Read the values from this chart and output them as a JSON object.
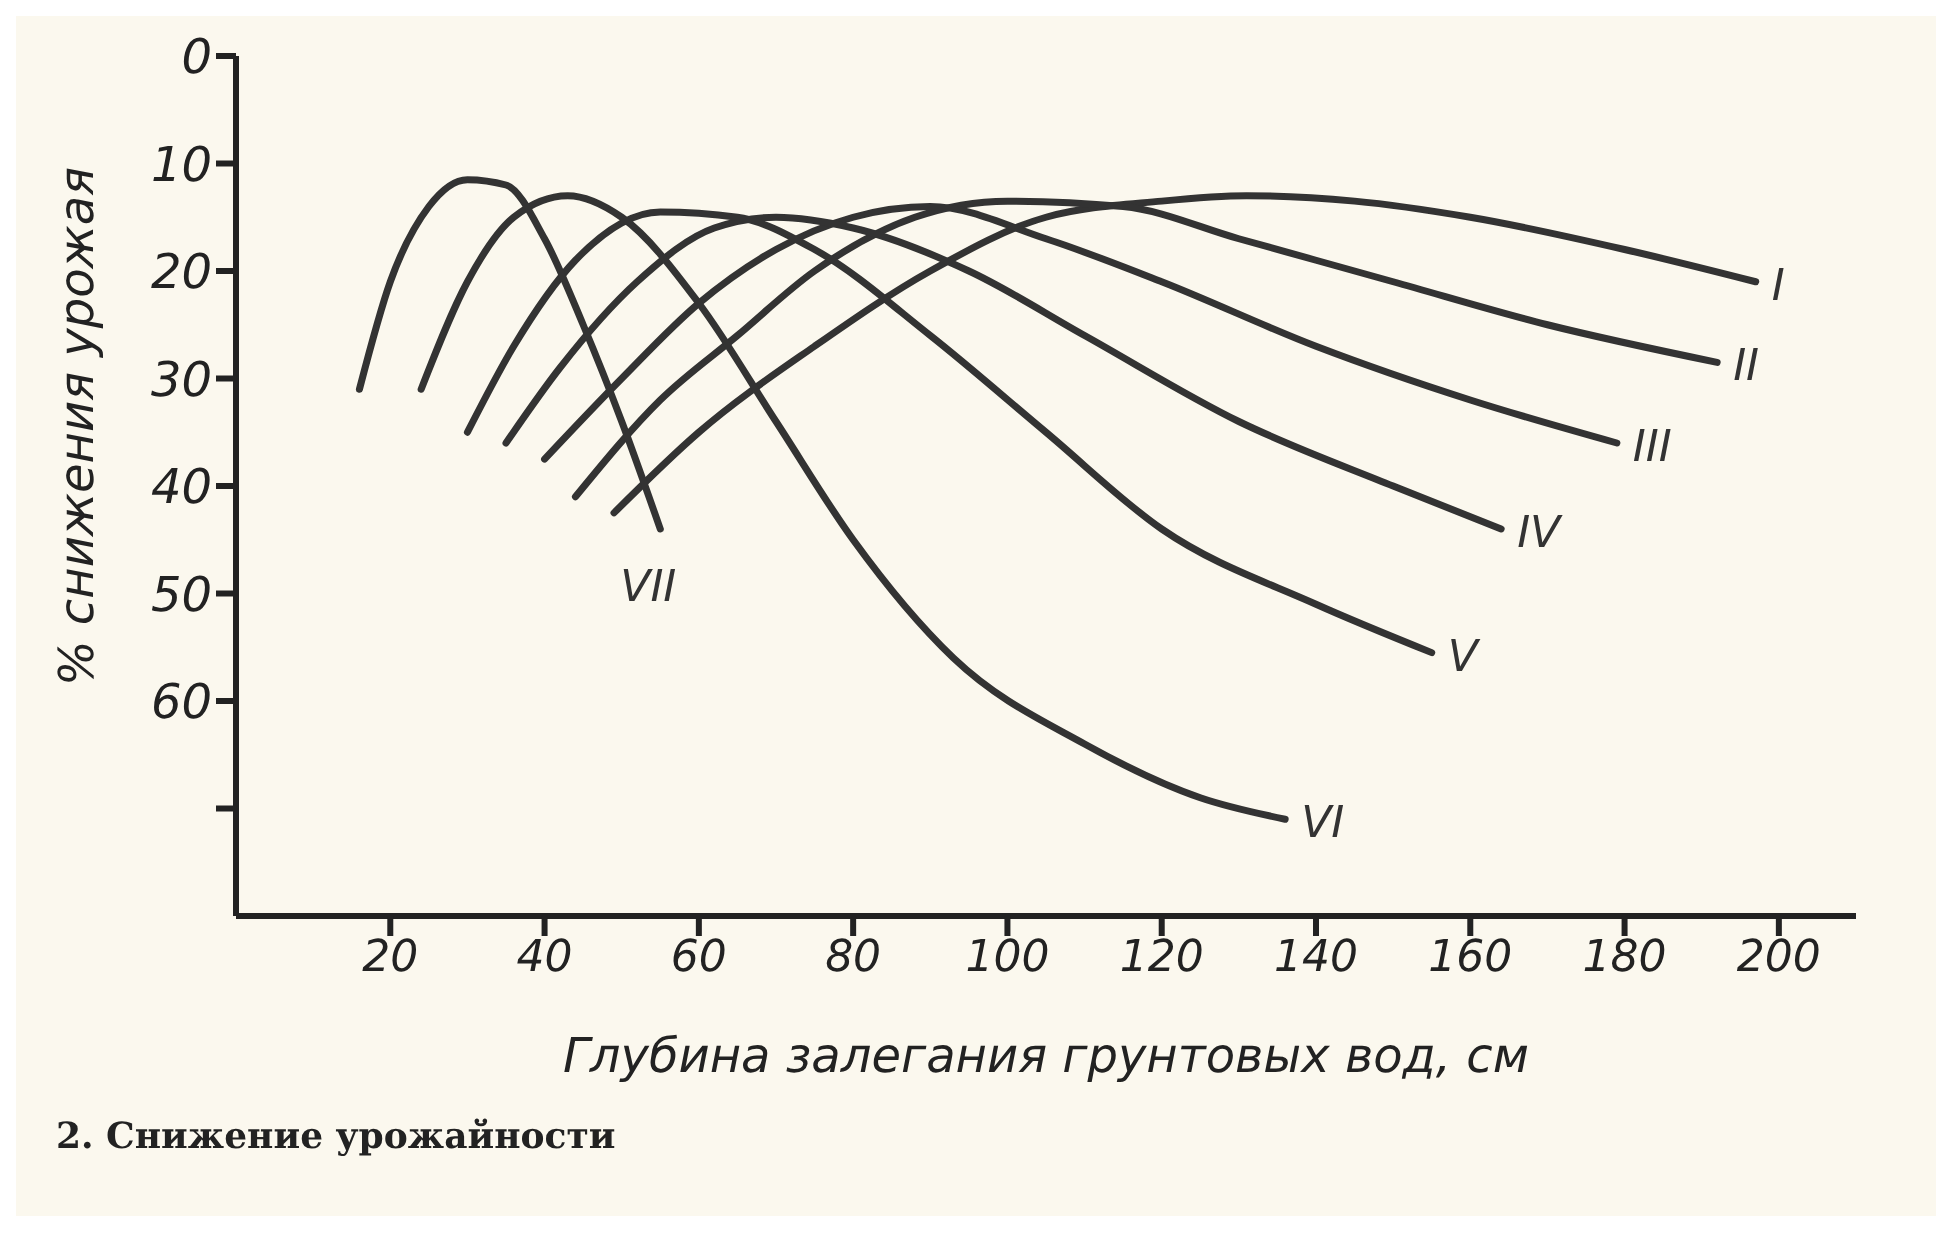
{
  "chart_data": {
    "type": "line",
    "xlabel": "Глубина залегания грунтовых вод, см",
    "ylabel": "% снижения урожая",
    "annotations": [
      "2. Снижение урожайности"
    ],
    "xlim": [
      0,
      210
    ],
    "xticks": [
      20,
      40,
      60,
      80,
      100,
      120,
      140,
      160,
      180,
      200
    ],
    "ylim": [
      80,
      0
    ],
    "yticks": [
      0,
      10,
      20,
      30,
      40,
      50,
      60,
      {
        "value": 70,
        "label": null
      }
    ],
    "line_style": "solid",
    "series": [
      {
        "name": "I",
        "color": "#333333",
        "x": [
          49,
          60,
          75,
          90,
          105,
          120,
          131,
          145,
          160,
          180,
          197
        ],
        "values": [
          42.5,
          35,
          27,
          20,
          15,
          13.5,
          13,
          13.5,
          15,
          18,
          21
        ]
      },
      {
        "name": "II",
        "color": "#333333",
        "x": [
          44,
          55,
          65,
          75,
          88,
          100,
          115,
          130,
          150,
          170,
          192
        ],
        "values": [
          41,
          32,
          26,
          20,
          15,
          13.5,
          14,
          17,
          21,
          25,
          28.5
        ]
      },
      {
        "name": "III",
        "color": "#333333",
        "x": [
          40,
          50,
          60,
          70,
          80,
          90,
          105,
          120,
          140,
          160,
          179
        ],
        "values": [
          37.5,
          30,
          23,
          18,
          15,
          14,
          17,
          21,
          27,
          32,
          36
        ]
      },
      {
        "name": "IV",
        "color": "#333333",
        "x": [
          35,
          42,
          52,
          62,
          70,
          80,
          95,
          110,
          130,
          150,
          164
        ],
        "values": [
          36,
          29,
          21,
          16,
          15,
          16,
          20,
          26,
          34,
          40,
          44
        ]
      },
      {
        "name": "V",
        "color": "#333333",
        "x": [
          30,
          36,
          44,
          55,
          65,
          75,
          90,
          105,
          120,
          140,
          155
        ],
        "values": [
          35,
          27,
          19,
          14.5,
          15,
          18,
          26,
          35,
          44,
          51,
          55.5
        ]
      },
      {
        "name": "VI",
        "color": "#333333",
        "x": [
          24,
          30,
          36,
          43,
          50,
          60,
          70,
          80,
          93,
          110,
          125,
          136
        ],
        "values": [
          31,
          21,
          15,
          13,
          15,
          23,
          34,
          45,
          56,
          64,
          69,
          71
        ]
      },
      {
        "name": "VII",
        "color": "#333333",
        "x": [
          16,
          20,
          25,
          30,
          35,
          40,
          45,
          50,
          55
        ],
        "values": [
          31,
          21,
          14,
          11.5,
          12,
          17,
          25,
          34,
          44
        ]
      }
    ]
  }
}
